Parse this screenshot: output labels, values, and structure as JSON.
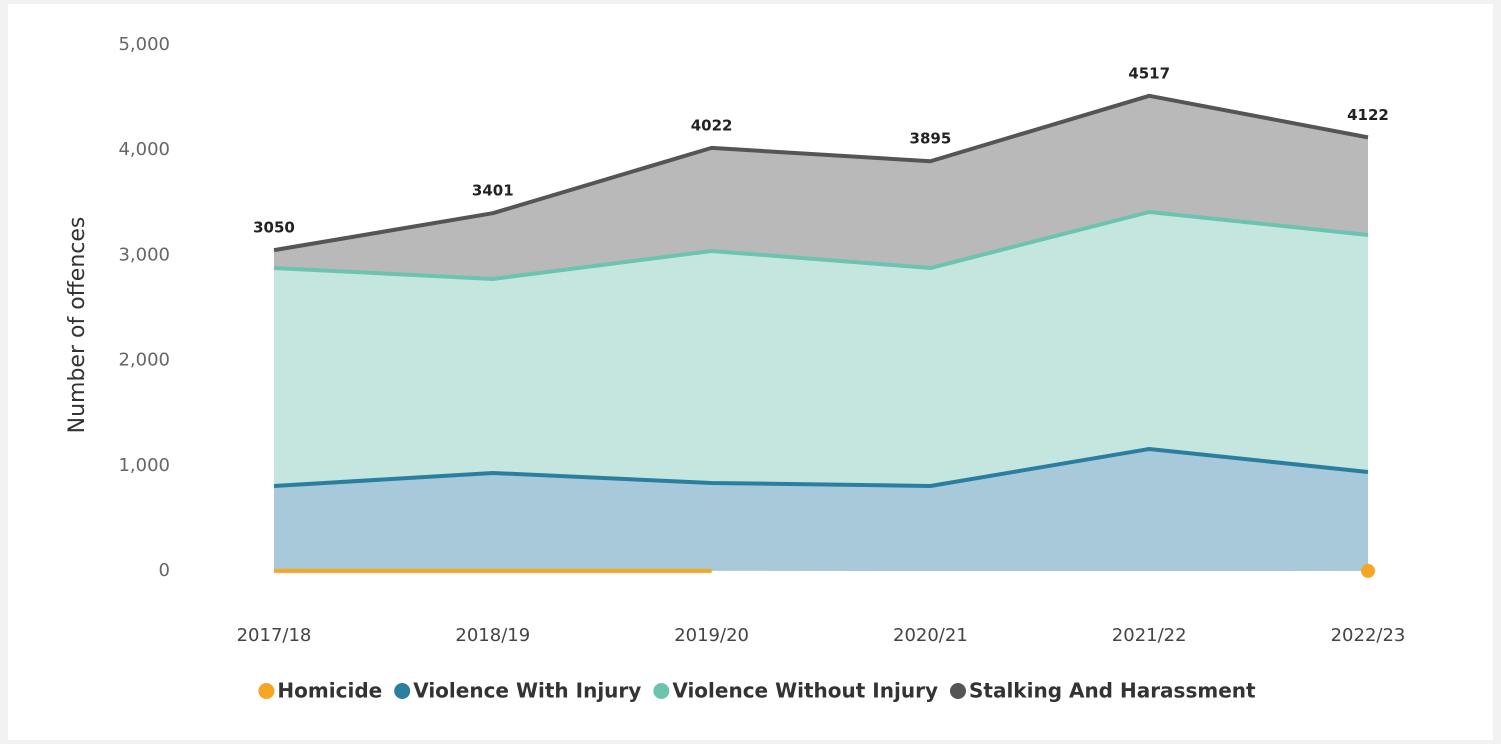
{
  "chart_data": {
    "type": "stacked_area",
    "y_label": "Number of offences",
    "categories": [
      "2017/18",
      "2018/19",
      "2019/20",
      "2020/21",
      "2021/22",
      "2022/23"
    ],
    "series": [
      {
        "name": "Homicide",
        "color": "#f5a623",
        "fill": null,
        "values": [
          1,
          1,
          1,
          null,
          null,
          1
        ]
      },
      {
        "name": "Violence With Injury",
        "color": "#2a7fa0",
        "fill": "#a8c9d9",
        "values": [
          807,
          931,
          836,
          808,
          1160,
          940
        ]
      },
      {
        "name": "Violence Without Injury",
        "color": "#6cc4b0",
        "fill": "#c5e6df",
        "values": [
          2072,
          1844,
          2205,
          2072,
          2253,
          2253
        ]
      },
      {
        "name": "Stalking And Harassment",
        "color": "#555555",
        "fill": "#b9b9b9",
        "values": [
          170,
          625,
          980,
          1015,
          1104,
          928
        ]
      }
    ],
    "totals": [
      3050,
      3401,
      4022,
      3895,
      4517,
      4122
    ],
    "ylim": [
      0,
      5000
    ],
    "yticks": [
      0,
      {
        "value": 1000,
        "label": "1,000"
      },
      {
        "value": 2000,
        "label": "2,000"
      },
      {
        "value": 3000,
        "label": "3,000"
      },
      {
        "value": 4000,
        "label": "4,000"
      },
      {
        "value": 5000,
        "label": "5,000"
      }
    ]
  }
}
